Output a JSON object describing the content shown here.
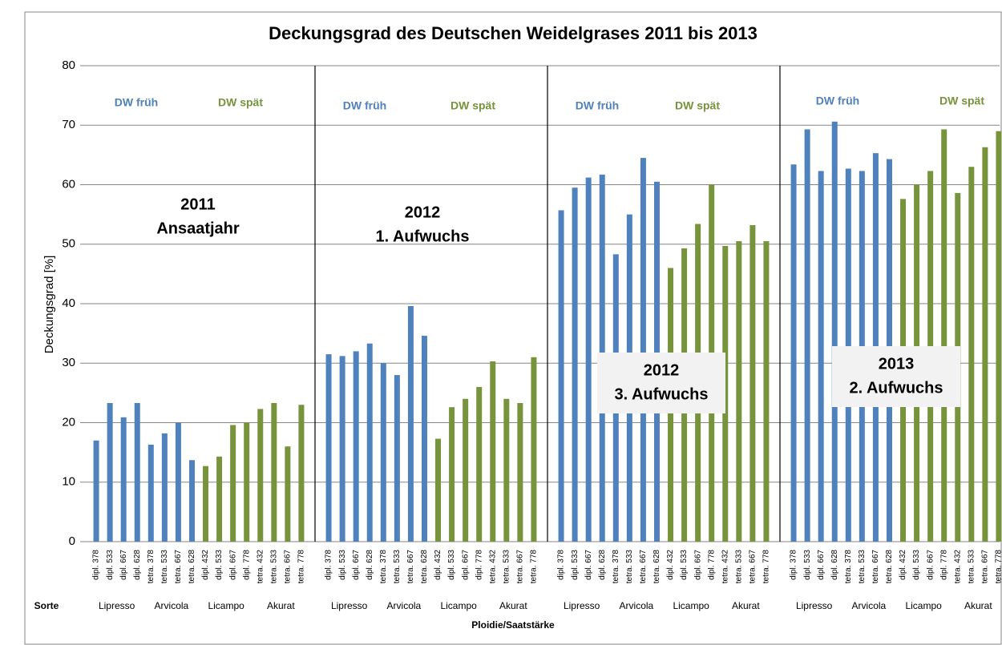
{
  "chart_data": {
    "type": "bar",
    "title": "Deckungsgrad des Deutschen Weidelgrases 2011 bis 2013",
    "y_label": "Deckungsgrad [%]",
    "x_label": "Ploidie/Saatstärke",
    "variety_label": "Sorte",
    "ylim": [
      0,
      80
    ],
    "yticks": [
      0,
      10,
      20,
      30,
      40,
      50,
      60,
      70,
      80
    ],
    "grid": true,
    "panels": [
      {
        "label": [
          "2011",
          "Ansaatjahr"
        ],
        "varieties": [
          "Lipresso",
          "Arvicola",
          "Licampo",
          "Akurat"
        ]
      },
      {
        "label": [
          "2012",
          "1. Aufwuchs"
        ],
        "varieties": [
          "Lipresso",
          "Arvicola",
          "Licampo",
          "Akurat"
        ]
      },
      {
        "label": [
          "2012",
          "3. Aufwuchs"
        ],
        "varieties": [
          "Lipresso",
          "Arvicola",
          "Licampo",
          "Akurat"
        ]
      },
      {
        "label": [
          "2013",
          "2. Aufwuchs"
        ],
        "varieties": [
          "Lipresso",
          "Arvicola",
          "Licampo",
          "Akurat"
        ]
      }
    ],
    "categories": [
      "dipl. 378",
      "dipl. 533",
      "dipl. 667",
      "dipl. 628",
      "tetra. 378",
      "tetra. 533",
      "tetra. 667",
      "tetra. 628",
      "dipl. 432",
      "dipl. 533",
      "dipl. 667",
      "dipl. 778",
      "tetra. 432",
      "tetra. 533",
      "tetra. 667",
      "tetra. 778",
      "dipl. 378",
      "dipl. 533",
      "dipl. 667",
      "dipl. 628",
      "tetra. 378",
      "tetra. 533",
      "tetra. 667",
      "tetra. 628",
      "dipl. 432",
      "dipl. 533",
      "dipl. 667",
      "dipl. 778",
      "tetra. 432",
      "tetra. 533",
      "tetra. 667",
      "tetra. 778",
      "dipl. 378",
      "dipl. 533",
      "dipl. 667",
      "dipl. 628",
      "tetra. 378",
      "tetra. 533",
      "tetra. 667",
      "tetra. 628",
      "dipl. 432",
      "dipl. 533",
      "dipl. 667",
      "dipl. 778",
      "tetra. 432",
      "tetra. 533",
      "tetra. 667",
      "tetra. 778",
      "dipl. 378",
      "dipl. 533",
      "dipl. 667",
      "dipl. 628",
      "tetra. 378",
      "tetra. 533",
      "tetra. 667",
      "tetra. 628",
      "dipl. 432",
      "dipl. 533",
      "dipl. 667",
      "dipl. 778",
      "tetra. 432",
      "tetra. 533",
      "tetra. 667",
      "tetra. 778"
    ],
    "series": [
      {
        "name": "DW früh",
        "color": "#4f81bd",
        "values": [
          17,
          23.3,
          20.9,
          23.3,
          16.3,
          18.2,
          20,
          13.7,
          null,
          null,
          null,
          null,
          null,
          null,
          null,
          null,
          31.5,
          31.2,
          32,
          33.3,
          30,
          28,
          39.6,
          34.6,
          null,
          null,
          null,
          null,
          null,
          null,
          null,
          null,
          55.7,
          59.5,
          61.2,
          61.7,
          48.3,
          55,
          64.5,
          60.5,
          null,
          null,
          null,
          null,
          null,
          null,
          null,
          null,
          63.4,
          69.3,
          62.3,
          70.6,
          62.7,
          62.3,
          65.3,
          64.3,
          null,
          null,
          null,
          null,
          null,
          null,
          null,
          null
        ]
      },
      {
        "name": "DW spät",
        "color": "#77933c",
        "values": [
          null,
          null,
          null,
          null,
          null,
          null,
          null,
          null,
          12.7,
          14.3,
          19.6,
          20,
          22.3,
          23.3,
          16,
          23,
          null,
          null,
          null,
          null,
          null,
          null,
          null,
          null,
          17.3,
          22.6,
          24,
          26,
          30.3,
          24,
          23.3,
          31,
          null,
          null,
          null,
          null,
          null,
          null,
          null,
          null,
          46,
          49.3,
          53.4,
          60,
          49.7,
          50.5,
          53.2,
          50.5,
          null,
          null,
          null,
          null,
          null,
          null,
          null,
          null,
          57.6,
          60,
          62.3,
          69.3,
          58.6,
          63,
          66.3,
          69
        ]
      }
    ]
  }
}
